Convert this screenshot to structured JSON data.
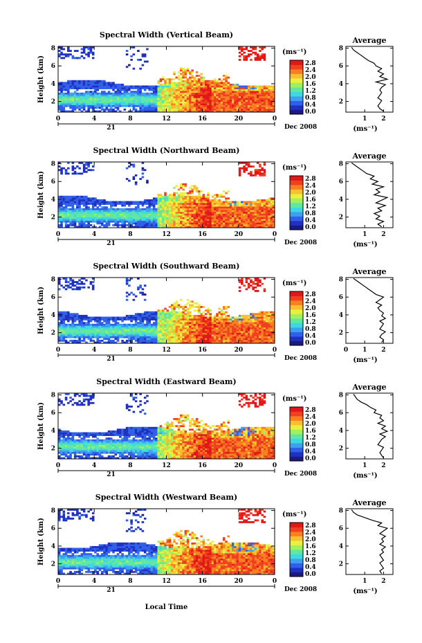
{
  "figure": {
    "xlabel": "Local Time",
    "date_label": "Dec 2008",
    "day_label": "21"
  },
  "colorbar": {
    "unit_label": "(ms⁻¹)",
    "ticks": [
      "2.8",
      "2.4",
      "2.0",
      "1.6",
      "1.2",
      "0.8",
      "0.4",
      "0.0"
    ],
    "colors": [
      "#1a1a80",
      "#2030c0",
      "#3060e8",
      "#40a0f0",
      "#40d8e0",
      "#60e8a0",
      "#a0f060",
      "#e8f040",
      "#f8c030",
      "#f88020",
      "#f04020",
      "#e01818"
    ]
  },
  "chart_data": [
    {
      "type": "heatmap",
      "title": "Spectral Width (Vertical Beam)",
      "ylabel": "Height (km)",
      "x_ticks": [
        "0",
        "4",
        "8",
        "12",
        "16",
        "20",
        "0"
      ],
      "y_ticks": [
        "2",
        "4",
        "6",
        "8"
      ],
      "xlim": [
        0,
        24
      ],
      "ylim": [
        0.8,
        8.2
      ],
      "profile": {
        "title": "Average",
        "xlabel": "(ms⁻¹)",
        "x_ticks": [
          "1",
          "2"
        ],
        "xlim": [
          0,
          2.5
        ],
        "y_ticks": [
          "2",
          "4",
          "6",
          "8"
        ],
        "ylim": [
          0.8,
          8.2
        ],
        "heights": [
          0.9,
          1.2,
          1.5,
          1.8,
          2.1,
          2.4,
          2.7,
          3.0,
          3.3,
          3.6,
          3.9,
          4.2,
          4.5,
          4.8,
          5.1,
          5.4,
          5.7,
          6.0,
          6.3,
          6.6,
          6.9,
          7.2,
          7.5,
          7.8,
          8.1
        ],
        "values": [
          2.0,
          1.8,
          1.7,
          1.8,
          1.9,
          1.7,
          1.8,
          1.9,
          1.8,
          1.9,
          2.1,
          1.6,
          2.2,
          1.8,
          2.0,
          1.7,
          1.9,
          1.6,
          1.5,
          1.2,
          1.0,
          0.8,
          0.6,
          0.4,
          0.3
        ]
      }
    },
    {
      "type": "heatmap",
      "title": "Spectral Width (Northward Beam)",
      "ylabel": "Height (km)",
      "x_ticks": [
        "0",
        "4",
        "8",
        "12",
        "16",
        "20",
        "0"
      ],
      "y_ticks": [
        "2",
        "4",
        "6",
        "8"
      ],
      "xlim": [
        0,
        24
      ],
      "ylim": [
        0.8,
        8.2
      ],
      "profile": {
        "title": "Average",
        "xlabel": "(ms⁻¹)",
        "x_ticks": [
          "1",
          "2"
        ],
        "xlim": [
          0,
          2.5
        ],
        "y_ticks": [
          "2",
          "4",
          "6",
          "8"
        ],
        "ylim": [
          0.8,
          8.2
        ],
        "heights": [
          0.9,
          1.2,
          1.5,
          1.8,
          2.1,
          2.4,
          2.7,
          3.0,
          3.3,
          3.6,
          3.9,
          4.2,
          4.5,
          4.8,
          5.1,
          5.4,
          5.7,
          6.0,
          6.3,
          6.6,
          6.9,
          7.2,
          7.5,
          7.8,
          8.1
        ],
        "values": [
          1.9,
          1.7,
          2.0,
          1.6,
          1.8,
          1.5,
          1.9,
          1.7,
          2.1,
          1.6,
          1.9,
          2.2,
          1.5,
          1.8,
          1.6,
          2.0,
          1.4,
          1.7,
          1.3,
          1.5,
          1.1,
          0.9,
          0.7,
          0.5,
          0.3
        ]
      }
    },
    {
      "type": "heatmap",
      "title": "Spectral Width (Southward Beam)",
      "ylabel": "Height (km)",
      "x_ticks": [
        "0",
        "4",
        "8",
        "12",
        "16",
        "20",
        "0"
      ],
      "y_ticks": [
        "2",
        "4",
        "6",
        "8"
      ],
      "xlim": [
        0,
        24
      ],
      "ylim": [
        0.8,
        8.2
      ],
      "profile": {
        "title": "Average",
        "xlabel": "(ms⁻¹)",
        "x_ticks": [
          "0",
          "1",
          "2"
        ],
        "xlim": [
          0,
          2.5
        ],
        "y_ticks": [
          "2",
          "4",
          "6",
          "8"
        ],
        "ylim": [
          0.8,
          8.2
        ],
        "heights": [
          0.9,
          1.2,
          1.5,
          1.8,
          2.1,
          2.4,
          2.7,
          3.0,
          3.3,
          3.6,
          3.9,
          4.2,
          4.5,
          4.8,
          5.1,
          5.4,
          5.7,
          6.0,
          6.3,
          6.6,
          6.9,
          7.2,
          7.5,
          7.8,
          8.1
        ],
        "values": [
          1.9,
          2.0,
          1.8,
          1.9,
          2.1,
          1.8,
          1.9,
          2.0,
          1.8,
          2.1,
          1.9,
          2.0,
          1.8,
          1.7,
          1.9,
          1.6,
          1.8,
          2.0,
          1.6,
          1.4,
          1.2,
          1.0,
          0.8,
          0.6,
          0.4
        ]
      }
    },
    {
      "type": "heatmap",
      "title": "Spectral Width (Eastward Beam)",
      "ylabel": "Height (km)",
      "x_ticks": [
        "0",
        "4",
        "8",
        "12",
        "16",
        "20",
        "0"
      ],
      "y_ticks": [
        "2",
        "4",
        "6",
        "8"
      ],
      "xlim": [
        0,
        24
      ],
      "ylim": [
        0.8,
        8.2
      ],
      "profile": {
        "title": "Average",
        "xlabel": "(ms⁻¹)",
        "x_ticks": [
          "1",
          "2"
        ],
        "xlim": [
          0,
          2.5
        ],
        "y_ticks": [
          "2",
          "4",
          "6",
          "8"
        ],
        "ylim": [
          0.8,
          8.2
        ],
        "heights": [
          0.9,
          1.2,
          1.5,
          1.8,
          2.1,
          2.4,
          2.7,
          3.0,
          3.3,
          3.6,
          3.9,
          4.2,
          4.5,
          4.8,
          5.1,
          5.4,
          5.7,
          6.0,
          6.3,
          6.6,
          6.9,
          7.2,
          7.5,
          7.8,
          8.1
        ],
        "values": [
          2.0,
          1.9,
          1.8,
          1.9,
          2.0,
          1.7,
          1.8,
          1.9,
          2.1,
          1.8,
          2.2,
          1.9,
          2.1,
          1.7,
          2.0,
          1.8,
          1.9,
          1.5,
          1.6,
          1.3,
          1.1,
          0.8,
          0.6,
          0.5,
          0.4
        ]
      }
    },
    {
      "type": "heatmap",
      "title": "Spectral Width (Westward Beam)",
      "ylabel": "Height (km)",
      "x_ticks": [
        "0",
        "4",
        "8",
        "12",
        "16",
        "20",
        "0"
      ],
      "y_ticks": [
        "2",
        "4",
        "6",
        "8"
      ],
      "xlim": [
        0,
        24
      ],
      "ylim": [
        0.8,
        8.2
      ],
      "profile": {
        "title": "Average",
        "xlabel": "(ms⁻¹)",
        "x_ticks": [
          "1",
          "2"
        ],
        "xlim": [
          0,
          2.5
        ],
        "y_ticks": [
          "2",
          "4",
          "6",
          "8"
        ],
        "ylim": [
          0.8,
          8.2
        ],
        "heights": [
          0.9,
          1.2,
          1.5,
          1.8,
          2.1,
          2.4,
          2.7,
          3.0,
          3.3,
          3.6,
          3.9,
          4.2,
          4.5,
          4.8,
          5.1,
          5.4,
          5.7,
          6.0,
          6.3,
          6.6,
          6.9,
          7.2,
          7.5,
          7.8,
          8.1
        ],
        "values": [
          1.9,
          1.8,
          2.0,
          1.9,
          1.8,
          2.0,
          1.9,
          1.8,
          2.0,
          1.9,
          2.1,
          1.8,
          2.0,
          1.9,
          2.1,
          1.8,
          2.0,
          2.2,
          1.7,
          1.9,
          1.4,
          1.0,
          0.6,
          0.4,
          0.3
        ]
      }
    }
  ]
}
